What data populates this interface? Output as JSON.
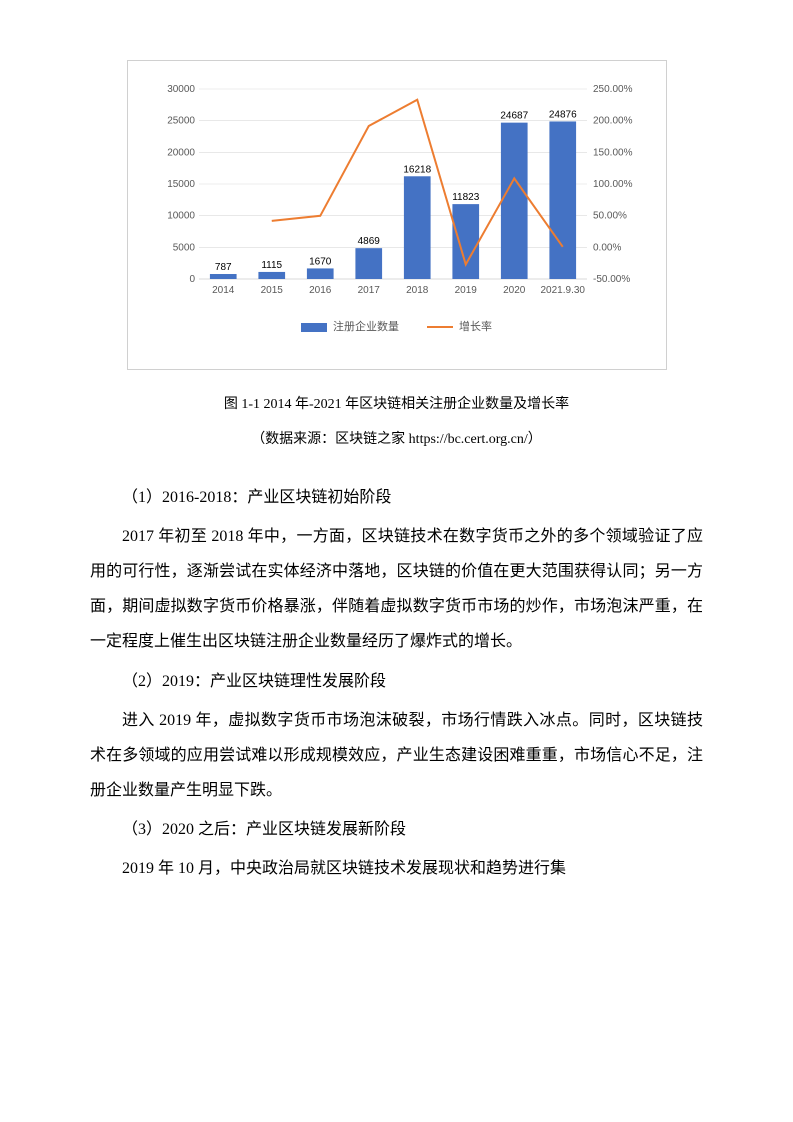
{
  "chart": {
    "type": "bar+line",
    "categories": [
      "2014",
      "2015",
      "2016",
      "2017",
      "2018",
      "2019",
      "2020",
      "2021.9.30"
    ],
    "bar_values": [
      787,
      1115,
      1670,
      4869,
      16218,
      11823,
      24687,
      24876
    ],
    "line_values_pct": [
      null,
      41.7,
      49.8,
      191.6,
      233.1,
      -27.1,
      108.8,
      0.77
    ],
    "bar_color": "#4472c4",
    "line_color": "#ed7d31",
    "grid_color": "#d9d9d9",
    "axis_text_color": "#595959",
    "background_color": "#ffffff",
    "y_left": {
      "min": 0,
      "max": 30000,
      "step": 5000
    },
    "y_right": {
      "min": -50,
      "max": 250,
      "step": 50,
      "suffix": "%",
      "format": "0.00"
    },
    "bar_width_ratio": 0.55,
    "line_width": 2,
    "label_fontsize": 10,
    "legend": {
      "bar_label": "注册企业数量",
      "line_label": "增长率"
    }
  },
  "caption": "图 1-1 2014 年-2021 年区块链相关注册企业数量及增长率",
  "source": "（数据来源：区块链之家 https://bc.cert.org.cn/）",
  "sections": [
    {
      "heading": "（1）2016-2018：产业区块链初始阶段",
      "paragraph": "2017 年初至 2018 年中，一方面，区块链技术在数字货币之外的多个领域验证了应用的可行性，逐渐尝试在实体经济中落地，区块链的价值在更大范围获得认同；另一方面，期间虚拟数字货币价格暴涨，伴随着虚拟数字货币市场的炒作，市场泡沫严重，在一定程度上催生出区块链注册企业数量经历了爆炸式的增长。"
    },
    {
      "heading": "（2）2019：产业区块链理性发展阶段",
      "paragraph": "进入 2019 年，虚拟数字货币市场泡沫破裂，市场行情跌入冰点。同时，区块链技术在多领域的应用尝试难以形成规模效应，产业生态建设困难重重，市场信心不足，注册企业数量产生明显下跌。"
    },
    {
      "heading": "（3）2020 之后：产业区块链发展新阶段",
      "paragraph": "2019 年 10 月，中央政治局就区块链技术发展现状和趋势进行集"
    }
  ]
}
